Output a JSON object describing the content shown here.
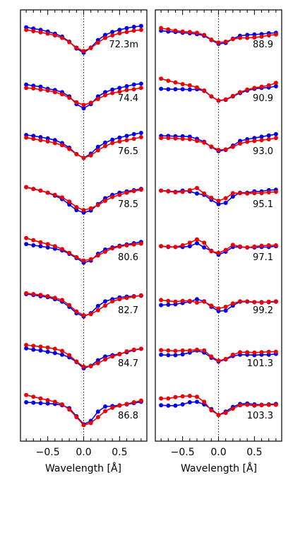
{
  "colors": {
    "blue": "#0000ee",
    "red": "#ee0000",
    "axis": "#000000"
  },
  "chart_data": {
    "type": "line",
    "xlabel": "Wavelength [Å]",
    "xlim": [
      -0.88,
      0.88
    ],
    "xticks": [
      -0.5,
      0.0,
      0.5
    ],
    "xtick_labels": [
      "−0.5",
      "0.0",
      "0.5"
    ],
    "x": [
      -0.8,
      -0.7,
      -0.6,
      -0.5,
      -0.4,
      -0.3,
      -0.2,
      -0.1,
      0.0,
      0.1,
      0.2,
      0.3,
      0.4,
      0.5,
      0.6,
      0.7,
      0.8
    ],
    "dotted_line_at_x": 0.0,
    "series_colors": [
      "#0000ee",
      "#ee0000"
    ],
    "panels": [
      {
        "rows": [
          {
            "label": "72.3m",
            "blue": [
              0.94,
              0.91,
              0.88,
              0.84,
              0.79,
              0.72,
              0.6,
              0.44,
              0.34,
              0.46,
              0.64,
              0.76,
              0.83,
              0.88,
              0.92,
              0.95,
              0.97
            ],
            "red": [
              0.88,
              0.85,
              0.82,
              0.79,
              0.75,
              0.69,
              0.59,
              0.46,
              0.38,
              0.45,
              0.58,
              0.69,
              0.75,
              0.8,
              0.83,
              0.86,
              0.88
            ]
          },
          {
            "label": "74.4",
            "blue": [
              0.84,
              0.81,
              0.79,
              0.74,
              0.71,
              0.66,
              0.56,
              0.38,
              0.28,
              0.38,
              0.56,
              0.66,
              0.72,
              0.76,
              0.8,
              0.84,
              0.86
            ],
            "red": [
              0.76,
              0.75,
              0.72,
              0.7,
              0.66,
              0.61,
              0.53,
              0.42,
              0.36,
              0.41,
              0.5,
              0.59,
              0.64,
              0.67,
              0.71,
              0.73,
              0.76
            ]
          },
          {
            "label": "76.5",
            "blue": [
              0.9,
              0.88,
              0.85,
              0.82,
              0.78,
              0.71,
              0.6,
              0.45,
              0.36,
              0.46,
              0.62,
              0.72,
              0.79,
              0.84,
              0.88,
              0.92,
              0.95
            ],
            "red": [
              0.84,
              0.81,
              0.78,
              0.75,
              0.71,
              0.66,
              0.57,
              0.45,
              0.36,
              0.42,
              0.54,
              0.64,
              0.71,
              0.75,
              0.78,
              0.81,
              0.85
            ]
          },
          {
            "label": "78.5",
            "blue": [
              0.92,
              0.88,
              0.84,
              0.79,
              0.72,
              0.64,
              0.51,
              0.38,
              0.32,
              0.37,
              0.52,
              0.66,
              0.74,
              0.79,
              0.82,
              0.85,
              0.88
            ],
            "red": [
              0.92,
              0.88,
              0.84,
              0.79,
              0.74,
              0.68,
              0.58,
              0.45,
              0.38,
              0.42,
              0.5,
              0.6,
              0.69,
              0.74,
              0.79,
              0.83,
              0.86
            ]
          },
          {
            "label": "80.6",
            "blue": [
              0.83,
              0.8,
              0.78,
              0.75,
              0.72,
              0.68,
              0.6,
              0.5,
              0.39,
              0.44,
              0.6,
              0.7,
              0.75,
              0.79,
              0.82,
              0.85,
              0.88
            ],
            "red": [
              0.97,
              0.92,
              0.87,
              0.83,
              0.78,
              0.71,
              0.62,
              0.52,
              0.44,
              0.47,
              0.56,
              0.65,
              0.73,
              0.77,
              0.8,
              0.82,
              0.84
            ]
          },
          {
            "label": "82.7",
            "blue": [
              0.9,
              0.88,
              0.85,
              0.83,
              0.78,
              0.72,
              0.6,
              0.45,
              0.37,
              0.45,
              0.62,
              0.73,
              0.78,
              0.82,
              0.84,
              0.85,
              0.86
            ],
            "red": [
              0.92,
              0.9,
              0.88,
              0.85,
              0.81,
              0.76,
              0.64,
              0.49,
              0.4,
              0.43,
              0.52,
              0.63,
              0.73,
              0.78,
              0.81,
              0.84,
              0.87
            ]
          },
          {
            "label": "84.7",
            "blue": [
              0.87,
              0.84,
              0.82,
              0.79,
              0.76,
              0.72,
              0.66,
              0.55,
              0.4,
              0.46,
              0.59,
              0.68,
              0.71,
              0.74,
              0.78,
              0.83,
              0.86
            ],
            "red": [
              0.95,
              0.93,
              0.91,
              0.89,
              0.86,
              0.81,
              0.71,
              0.56,
              0.44,
              0.45,
              0.52,
              0.61,
              0.68,
              0.73,
              0.8,
              0.84,
              0.86
            ]
          },
          {
            "label": "86.8",
            "blue": [
              0.85,
              0.84,
              0.83,
              0.82,
              0.81,
              0.78,
              0.71,
              0.52,
              0.33,
              0.41,
              0.63,
              0.75,
              0.76,
              0.78,
              0.8,
              0.83,
              0.86
            ],
            "red": [
              1.02,
              0.98,
              0.94,
              0.9,
              0.86,
              0.8,
              0.68,
              0.5,
              0.31,
              0.36,
              0.5,
              0.64,
              0.72,
              0.77,
              0.81,
              0.85,
              0.89
            ]
          }
        ]
      },
      {
        "rows": [
          {
            "label": "88.9",
            "blue": [
              0.86,
              0.84,
              0.83,
              0.81,
              0.8,
              0.78,
              0.74,
              0.64,
              0.55,
              0.57,
              0.67,
              0.74,
              0.76,
              0.77,
              0.78,
              0.8,
              0.81
            ],
            "red": [
              0.92,
              0.89,
              0.86,
              0.84,
              0.83,
              0.81,
              0.76,
              0.65,
              0.58,
              0.6,
              0.66,
              0.69,
              0.69,
              0.7,
              0.72,
              0.75,
              0.77
            ]
          },
          {
            "label": "90.9",
            "blue": [
              0.74,
              0.73,
              0.73,
              0.73,
              0.72,
              0.73,
              0.69,
              0.56,
              0.46,
              0.48,
              0.56,
              0.64,
              0.7,
              0.74,
              0.76,
              0.77,
              0.8
            ],
            "red": [
              0.98,
              0.93,
              0.89,
              0.85,
              0.82,
              0.77,
              0.7,
              0.56,
              0.46,
              0.49,
              0.57,
              0.66,
              0.72,
              0.76,
              0.79,
              0.82,
              0.88
            ]
          },
          {
            "label": "93.0",
            "blue": [
              0.88,
              0.88,
              0.87,
              0.87,
              0.86,
              0.81,
              0.74,
              0.62,
              0.52,
              0.55,
              0.65,
              0.76,
              0.8,
              0.83,
              0.86,
              0.89,
              0.92
            ],
            "red": [
              0.83,
              0.83,
              0.82,
              0.81,
              0.8,
              0.76,
              0.72,
              0.63,
              0.55,
              0.56,
              0.62,
              0.7,
              0.74,
              0.76,
              0.78,
              0.8,
              0.83
            ]
          },
          {
            "label": "95.1",
            "blue": [
              0.84,
              0.83,
              0.81,
              0.84,
              0.82,
              0.77,
              0.74,
              0.62,
              0.52,
              0.55,
              0.7,
              0.79,
              0.79,
              0.82,
              0.82,
              0.85,
              0.86
            ],
            "red": [
              0.84,
              0.82,
              0.8,
              0.81,
              0.85,
              0.9,
              0.77,
              0.67,
              0.6,
              0.66,
              0.78,
              0.78,
              0.77,
              0.78,
              0.78,
              0.8,
              0.81
            ]
          },
          {
            "label": "97.1",
            "blue": [
              0.78,
              0.76,
              0.76,
              0.76,
              0.78,
              0.85,
              0.75,
              0.67,
              0.58,
              0.65,
              0.76,
              0.76,
              0.75,
              0.75,
              0.76,
              0.76,
              0.78
            ],
            "red": [
              0.78,
              0.77,
              0.76,
              0.8,
              0.86,
              0.94,
              0.86,
              0.66,
              0.62,
              0.69,
              0.81,
              0.77,
              0.75,
              0.77,
              0.79,
              0.8,
              0.8
            ]
          },
          {
            "label": "99.2",
            "blue": [
              0.64,
              0.65,
              0.66,
              0.69,
              0.72,
              0.78,
              0.73,
              0.6,
              0.5,
              0.51,
              0.63,
              0.72,
              0.72,
              0.71,
              0.71,
              0.71,
              0.72
            ],
            "red": [
              0.76,
              0.74,
              0.72,
              0.74,
              0.74,
              0.7,
              0.72,
              0.63,
              0.56,
              0.6,
              0.68,
              0.73,
              0.73,
              0.71,
              0.7,
              0.72,
              0.73
            ]
          },
          {
            "label": "101.3",
            "blue": [
              0.72,
              0.71,
              0.71,
              0.73,
              0.77,
              0.82,
              0.77,
              0.65,
              0.56,
              0.61,
              0.69,
              0.72,
              0.72,
              0.71,
              0.72,
              0.72,
              0.74
            ],
            "red": [
              0.83,
              0.82,
              0.81,
              0.82,
              0.82,
              0.84,
              0.82,
              0.68,
              0.58,
              0.62,
              0.72,
              0.78,
              0.78,
              0.77,
              0.78,
              0.79,
              0.79
            ]
          },
          {
            "label": "103.3",
            "blue": [
              0.78,
              0.77,
              0.77,
              0.8,
              0.85,
              0.86,
              0.8,
              0.69,
              0.55,
              0.63,
              0.74,
              0.81,
              0.82,
              0.8,
              0.79,
              0.8,
              0.81
            ],
            "red": [
              0.94,
              0.94,
              0.97,
              0.99,
              1.0,
              0.98,
              0.86,
              0.66,
              0.55,
              0.6,
              0.7,
              0.78,
              0.79,
              0.77,
              0.78,
              0.79,
              0.79
            ]
          }
        ]
      }
    ]
  }
}
